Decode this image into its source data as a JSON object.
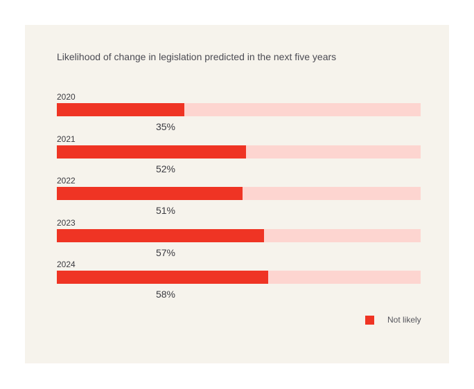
{
  "chart_data": {
    "type": "bar",
    "orientation": "horizontal",
    "title": "Likelihood of change in legislation predicted in the next five years",
    "categories": [
      "2020",
      "2021",
      "2022",
      "2023",
      "2024"
    ],
    "series": [
      {
        "name": "Not likely",
        "values": [
          35,
          52,
          51,
          57,
          58
        ]
      }
    ],
    "value_labels": [
      "35%",
      "52%",
      "51%",
      "57%",
      "58%"
    ],
    "xlim": [
      0,
      100
    ],
    "grid": false,
    "legend": "bottom-right",
    "colors": {
      "bar": "#ef3424",
      "track": "#fdd5d0",
      "background": "#f6f3ec"
    }
  }
}
